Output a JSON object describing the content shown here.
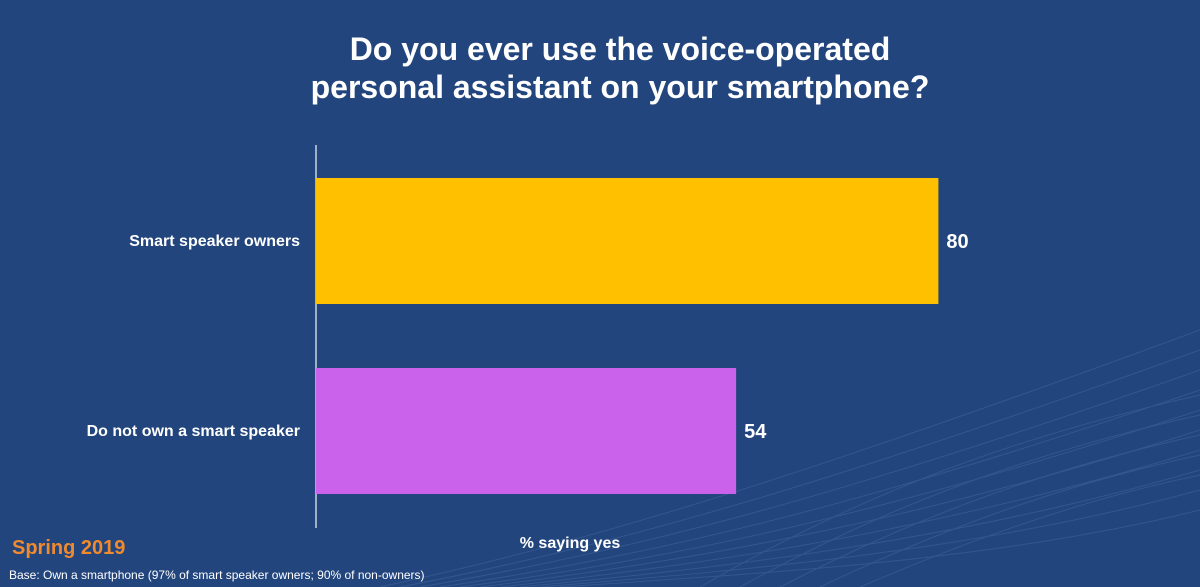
{
  "title": {
    "line1": "Do you ever use the voice-operated",
    "line2": "personal assistant on your smartphone?"
  },
  "footer": {
    "season": "Spring 2019",
    "base_note": "Base: Own a smartphone (97% of smart speaker owners; 90% of non-owners)"
  },
  "colors": {
    "background": "#22457d",
    "season_text": "#f08a2e"
  },
  "chart_data": {
    "type": "bar",
    "orientation": "horizontal",
    "title": "Do you ever use the voice-operated personal assistant on your smartphone?",
    "xlabel": "% saying yes",
    "ylabel": "",
    "categories": [
      "Smart speaker owners",
      "Do not own a smart speaker"
    ],
    "values": [
      80,
      54
    ],
    "colors": [
      "#ffc000",
      "#cb62ec"
    ],
    "xlim": [
      0,
      100
    ],
    "grid": false,
    "data_labels": true
  }
}
